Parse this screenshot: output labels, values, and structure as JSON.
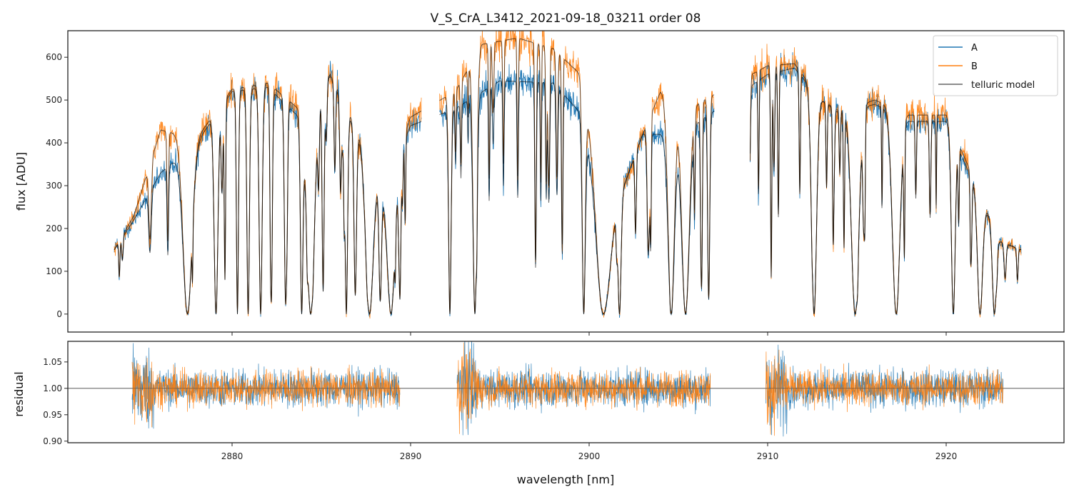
{
  "chart_data": [
    {
      "type": "line",
      "title": "V_S_CrA_L3412_2021-09-18_03211  order 08",
      "xlabel": "",
      "ylabel": "flux [ADU]",
      "xlim": [
        2870.8,
        2926.6
      ],
      "ylim": [
        -42,
        662
      ],
      "xticks": [
        2880,
        2890,
        2900,
        2910,
        2920
      ],
      "yticks": [
        0,
        100,
        200,
        300,
        400,
        500,
        600
      ],
      "ytick_labels": [
        "0",
        "100",
        "200",
        "300",
        "400",
        "500",
        "600"
      ],
      "legend": {
        "placement": "top-right",
        "entries": [
          "A",
          "B",
          "telluric model"
        ]
      },
      "colors": {
        "A": "#1f77b4",
        "B": "#ff7f0e",
        "telluric model": "#555555"
      },
      "data_range": [
        2873.4,
        2924.2
      ],
      "gaps": [
        [
          2890.6,
          2891.6
        ],
        [
          2907.0,
          2909.0
        ]
      ],
      "continuum_A": [
        [
          2873.4,
          150
        ],
        [
          2874.5,
          220
        ],
        [
          2876,
          330
        ],
        [
          2878,
          400
        ],
        [
          2880,
          520
        ],
        [
          2882,
          530
        ],
        [
          2884,
          450
        ],
        [
          2885.5,
          560
        ],
        [
          2887,
          430
        ],
        [
          2888.5,
          300
        ],
        [
          2890,
          440
        ],
        [
          2892.5,
          480
        ],
        [
          2895,
          545
        ],
        [
          2898,
          540
        ],
        [
          2899.5,
          470
        ],
        [
          2901,
          190
        ],
        [
          2903,
          420
        ],
        [
          2905,
          420
        ],
        [
          2906.5,
          460
        ],
        [
          2910,
          560
        ],
        [
          2911.5,
          575
        ],
        [
          2913,
          500
        ],
        [
          2914,
          470
        ],
        [
          2916,
          490
        ],
        [
          2918,
          450
        ],
        [
          2920,
          450
        ],
        [
          2921.5,
          310
        ],
        [
          2923,
          170
        ],
        [
          2924.2,
          150
        ]
      ],
      "continuum_B": [
        [
          2873.4,
          150
        ],
        [
          2874.5,
          230
        ],
        [
          2876,
          430
        ],
        [
          2878,
          410
        ],
        [
          2880,
          525
        ],
        [
          2882,
          540
        ],
        [
          2884,
          470
        ],
        [
          2885.5,
          555
        ],
        [
          2887,
          420
        ],
        [
          2888.5,
          280
        ],
        [
          2890,
          460
        ],
        [
          2892.5,
          520
        ],
        [
          2894,
          630
        ],
        [
          2896,
          645
        ],
        [
          2898,
          620
        ],
        [
          2899.5,
          560
        ],
        [
          2901,
          190
        ],
        [
          2903,
          420
        ],
        [
          2904,
          520
        ],
        [
          2906,
          490
        ],
        [
          2910,
          580
        ],
        [
          2911.5,
          585
        ],
        [
          2913,
          500
        ],
        [
          2914,
          475
        ],
        [
          2916,
          500
        ],
        [
          2918,
          465
        ],
        [
          2920,
          465
        ],
        [
          2921.5,
          320
        ],
        [
          2923,
          170
        ],
        [
          2924.2,
          150
        ]
      ],
      "absorption_lines": [
        [
          2875.4,
          0.5,
          0.1
        ],
        [
          2876.4,
          0.6,
          0.06
        ],
        [
          2877.5,
          1.0,
          0.35
        ],
        [
          2879.1,
          1.0,
          0.15
        ],
        [
          2879.6,
          0.8,
          0.05
        ],
        [
          2880.3,
          1.0,
          0.08
        ],
        [
          2880.9,
          1.0,
          0.1
        ],
        [
          2881.6,
          1.0,
          0.12
        ],
        [
          2882.2,
          0.9,
          0.08
        ],
        [
          2883.0,
          0.95,
          0.1
        ],
        [
          2883.9,
          1.0,
          0.1
        ],
        [
          2884.4,
          1.0,
          0.3
        ],
        [
          2885.1,
          0.9,
          0.08
        ],
        [
          2886.4,
          1.0,
          0.1
        ],
        [
          2886.9,
          0.9,
          0.1
        ],
        [
          2887.7,
          1.0,
          0.3
        ],
        [
          2888.3,
          0.9,
          0.1
        ],
        [
          2888.9,
          1.0,
          0.3
        ],
        [
          2889.4,
          0.9,
          0.08
        ],
        [
          2892.2,
          1.0,
          0.1
        ],
        [
          2893.6,
          1.0,
          0.15
        ],
        [
          2894.4,
          0.5,
          0.05
        ],
        [
          2895.2,
          0.45,
          0.05
        ],
        [
          2896.0,
          0.5,
          0.05
        ],
        [
          2897.0,
          0.8,
          0.06
        ],
        [
          2897.6,
          0.5,
          0.05
        ],
        [
          2898.5,
          0.6,
          0.05
        ],
        [
          2899.7,
          1.0,
          0.12
        ],
        [
          2900.8,
          1.0,
          0.45
        ],
        [
          2901.7,
          1.0,
          0.12
        ],
        [
          2902.6,
          0.5,
          0.06
        ],
        [
          2903.3,
          0.6,
          0.08
        ],
        [
          2904.6,
          1.0,
          0.25
        ],
        [
          2905.4,
          1.0,
          0.3
        ],
        [
          2906.3,
          0.8,
          0.06
        ],
        [
          2906.7,
          0.9,
          0.08
        ],
        [
          2910.2,
          0.85,
          0.05
        ],
        [
          2910.6,
          0.6,
          0.05
        ],
        [
          2911.8,
          0.5,
          0.05
        ],
        [
          2912.6,
          1.0,
          0.2
        ],
        [
          2913.3,
          0.4,
          0.05
        ],
        [
          2914.9,
          1.0,
          0.3
        ],
        [
          2917.2,
          1.0,
          0.3
        ],
        [
          2918.3,
          0.4,
          0.05
        ],
        [
          2919.1,
          0.5,
          0.06
        ],
        [
          2920.4,
          1.0,
          0.15
        ],
        [
          2921.4,
          0.6,
          0.06
        ],
        [
          2921.9,
          1.0,
          0.2
        ],
        [
          2922.7,
          1.0,
          0.15
        ],
        [
          2923.3,
          0.5,
          0.08
        ]
      ],
      "noise_adu": {
        "A": 12,
        "B": 14
      }
    },
    {
      "type": "line",
      "xlabel": "wavelength [nm]",
      "ylabel": "residual",
      "xlim": [
        2870.8,
        2926.6
      ],
      "ylim": [
        0.897,
        1.089
      ],
      "xticks": [
        2880,
        2890,
        2900,
        2910,
        2920
      ],
      "xtick_labels": [
        "2880",
        "2890",
        "2900",
        "2910",
        "2920"
      ],
      "yticks": [
        0.9,
        0.95,
        1.0,
        1.05
      ],
      "ytick_labels": [
        "0.90",
        "0.95",
        "1.00",
        "1.05"
      ],
      "reference_line": 1.0,
      "segments": [
        [
          2874.4,
          2889.4
        ],
        [
          2892.6,
          2906.8
        ],
        [
          2909.9,
          2923.2
        ]
      ],
      "residual_scatter": {
        "A": 0.03,
        "B": 0.028
      }
    }
  ]
}
